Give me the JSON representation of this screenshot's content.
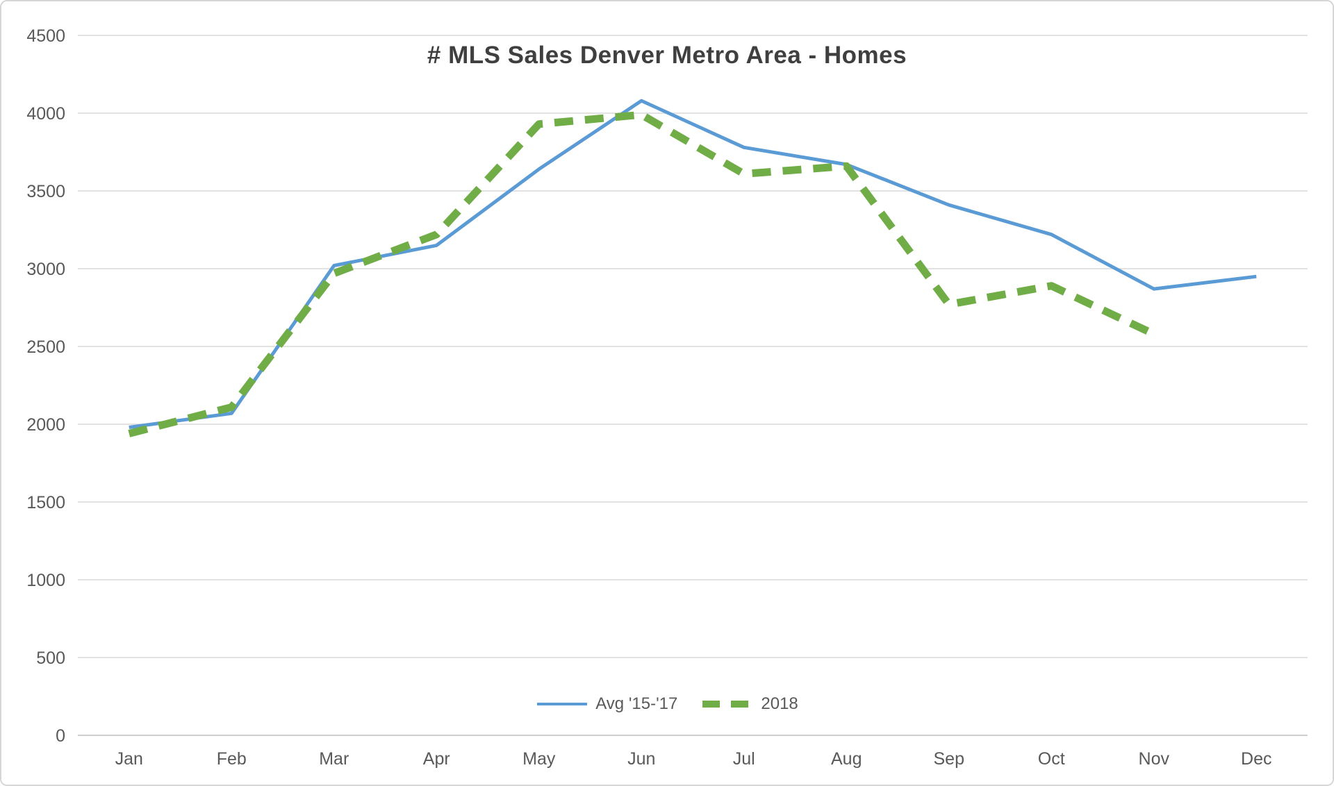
{
  "chart_data": {
    "type": "line",
    "title": "# MLS Sales Denver Metro Area - Homes",
    "categories": [
      "Jan",
      "Feb",
      "Mar",
      "Apr",
      "May",
      "Jun",
      "Jul",
      "Aug",
      "Sep",
      "Oct",
      "Nov",
      "Dec"
    ],
    "series": [
      {
        "name": "Avg '15-'17",
        "color": "#5B9BD5",
        "style": "solid",
        "values": [
          1980,
          2070,
          3020,
          3150,
          3640,
          4080,
          3780,
          3670,
          3410,
          3220,
          2870,
          2950
        ]
      },
      {
        "name": "2018",
        "color": "#70AD47",
        "style": "dashed",
        "values": [
          1940,
          2110,
          2970,
          3220,
          3930,
          3990,
          3610,
          3660,
          2770,
          2890,
          2580,
          null
        ]
      }
    ],
    "ylim": [
      0,
      4500
    ],
    "ytick_step": 500,
    "yticks": [
      0,
      500,
      1000,
      1500,
      2000,
      2500,
      3000,
      3500,
      4000,
      4500
    ],
    "grid": true,
    "legend_position": "bottom-center"
  },
  "colors": {
    "gridline": "#D9D9D9",
    "axis_line": "#BFBFBF",
    "tick_label": "#595959",
    "title": "#3F3F3F",
    "frame_border": "#D6D6D6",
    "background": "#FFFFFF"
  }
}
